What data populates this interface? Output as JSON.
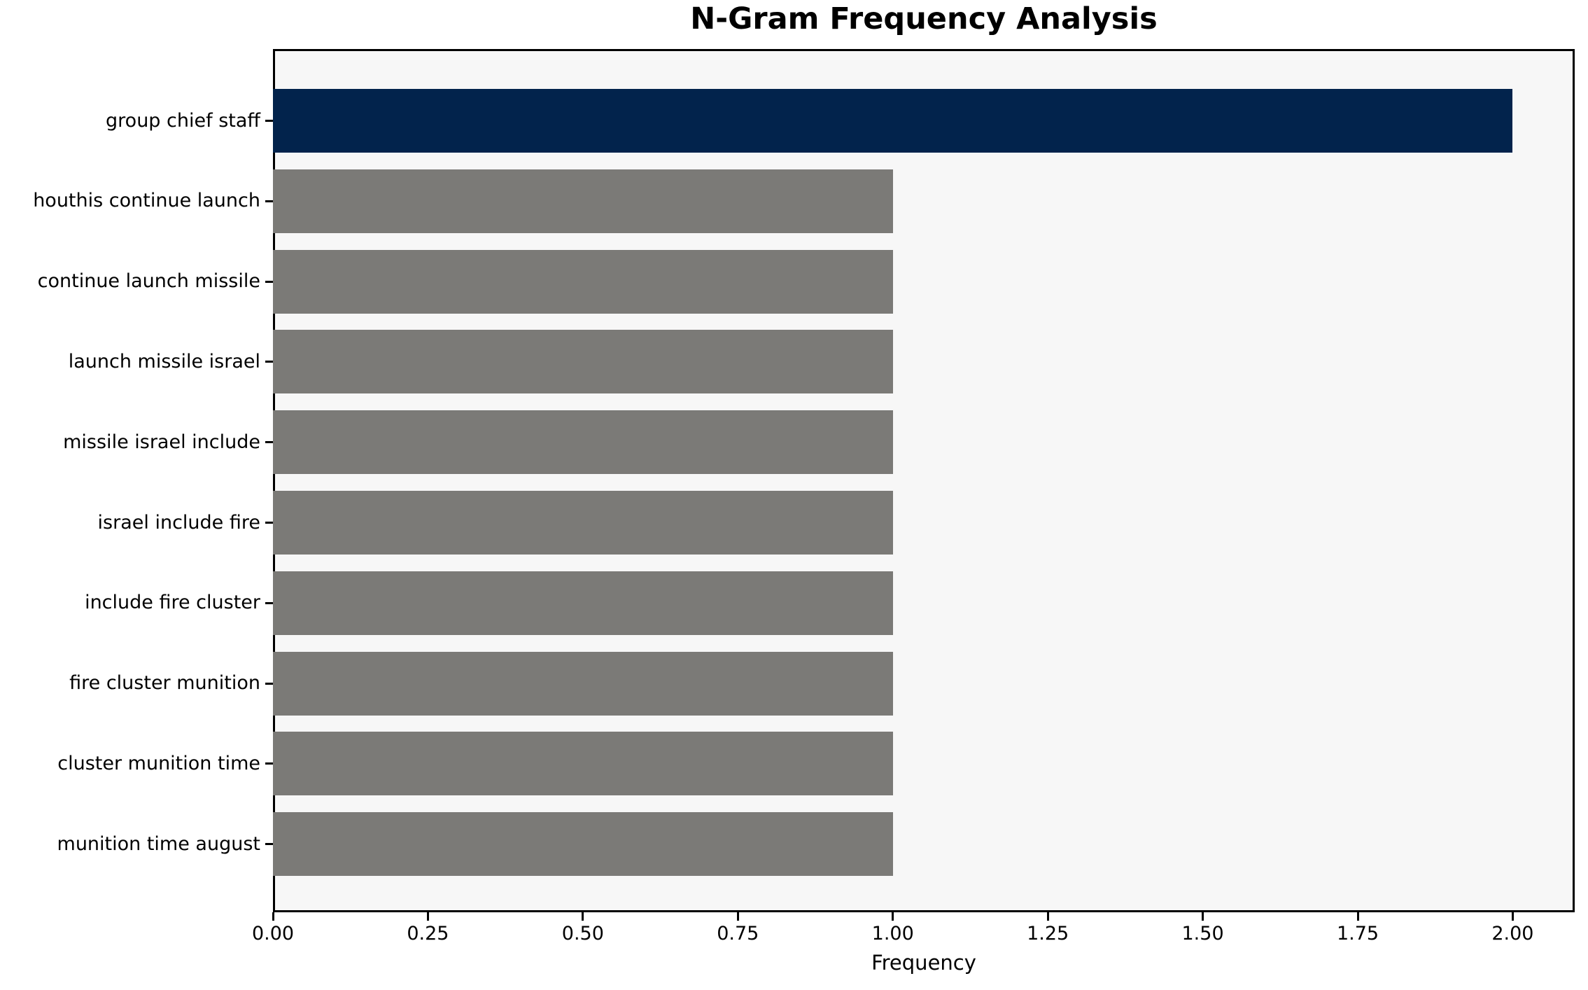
{
  "chart_data": {
    "type": "bar",
    "orientation": "horizontal",
    "title": "N-Gram Frequency Analysis",
    "xlabel": "Frequency",
    "ylabel": "",
    "categories": [
      "group chief staff",
      "houthis continue launch",
      "continue launch missile",
      "launch missile israel",
      "missile israel include",
      "israel include fire",
      "include fire cluster",
      "fire cluster munition",
      "cluster munition time",
      "munition time august"
    ],
    "values": [
      2,
      1,
      1,
      1,
      1,
      1,
      1,
      1,
      1,
      1
    ],
    "bar_colors": [
      "#02234c",
      "#7b7a77",
      "#7b7a77",
      "#7b7a77",
      "#7b7a77",
      "#7b7a77",
      "#7b7a77",
      "#7b7a77",
      "#7b7a77",
      "#7b7a77"
    ],
    "xlim": [
      0,
      2.1
    ],
    "xtick_values": [
      0,
      0.25,
      0.5,
      0.75,
      1.0,
      1.25,
      1.5,
      1.75,
      2.0
    ],
    "xtick_labels": [
      "0.00",
      "0.25",
      "0.50",
      "0.75",
      "1.00",
      "1.25",
      "1.50",
      "1.75",
      "2.00"
    ],
    "grid": false,
    "legend_position": "none",
    "colors": {
      "plot_background": "#f7f7f7",
      "figure_background": "#ffffff",
      "axis": "#000000",
      "text": "#000000",
      "highlight_bar": "#02234c",
      "default_bar": "#7b7a77"
    }
  }
}
